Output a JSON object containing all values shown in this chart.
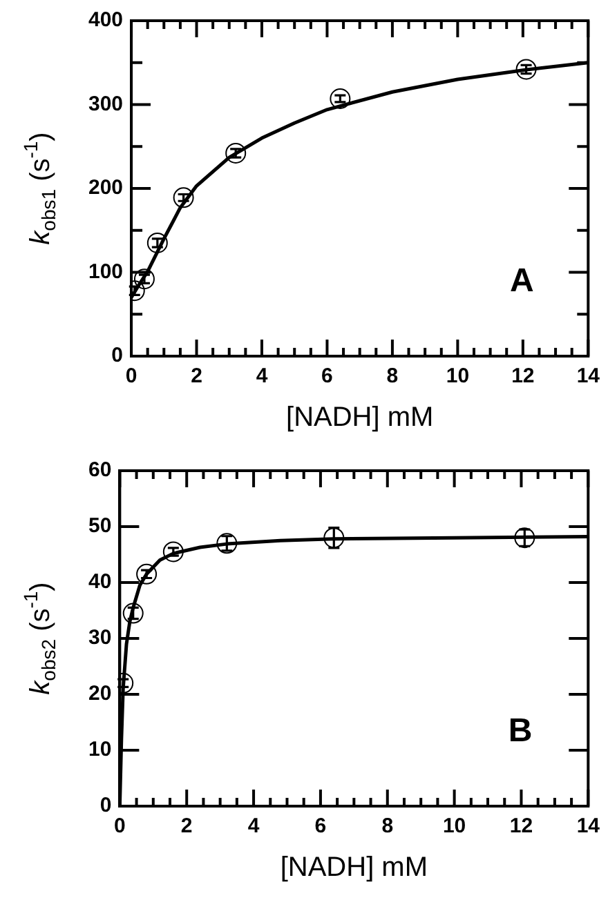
{
  "chart_data": [
    {
      "type": "scatter",
      "xlabel": "[NADH] mM",
      "ylabel": "k$_{obs1}$ (s$^{-1}$)",
      "annotations": [
        "A"
      ],
      "legend": false,
      "grid": false,
      "xlim": [
        0,
        14
      ],
      "ylim": [
        0,
        400
      ],
      "xticks": [
        0,
        {
          "value": 0.5,
          "label": null
        },
        {
          "value": 1,
          "label": null
        },
        {
          "value": 1.5,
          "label": null
        },
        2,
        {
          "value": 2.5,
          "label": null
        },
        {
          "value": 3,
          "label": null
        },
        {
          "value": 3.5,
          "label": null
        },
        4,
        {
          "value": 4.5,
          "label": null
        },
        {
          "value": 5,
          "label": null
        },
        {
          "value": 5.5,
          "label": null
        },
        6,
        {
          "value": 6.5,
          "label": null
        },
        {
          "value": 7,
          "label": null
        },
        {
          "value": 7.5,
          "label": null
        },
        8,
        {
          "value": 8.5,
          "label": null
        },
        {
          "value": 9,
          "label": null
        },
        {
          "value": 9.5,
          "label": null
        },
        10,
        {
          "value": 10.5,
          "label": null
        },
        {
          "value": 11,
          "label": null
        },
        {
          "value": 11.5,
          "label": null
        },
        12,
        {
          "value": 12.5,
          "label": null
        },
        {
          "value": 13,
          "label": null
        },
        {
          "value": 13.5,
          "label": null
        },
        14
      ],
      "yticks": [
        0,
        {
          "value": 50,
          "label": null
        },
        100,
        {
          "value": 150,
          "label": null
        },
        200,
        {
          "value": 250,
          "label": null
        },
        300,
        {
          "value": 350,
          "label": null
        },
        400
      ],
      "series": [
        {
          "type": "scatter",
          "marker": "circle",
          "color": "#000000",
          "x": [
            0.1,
            0.4,
            0.8,
            1.6,
            3.2,
            6.4,
            12.1
          ],
          "values": [
            78,
            92,
            135,
            189,
            242,
            307,
            342
          ],
          "errors": [
            5,
            5,
            5,
            4,
            5,
            4,
            5
          ]
        },
        {
          "type": "line",
          "marker": "none",
          "line_style": "solid",
          "color": "#000000",
          "x": [
            0,
            0.25,
            0.5,
            1,
            1.5,
            2,
            3,
            4,
            5,
            6,
            8,
            10,
            12,
            14
          ],
          "values": [
            70,
            86,
            101,
            140,
            177,
            203,
            237,
            260,
            278,
            294,
            315,
            330,
            341,
            350
          ]
        }
      ]
    },
    {
      "type": "scatter",
      "xlabel": "[NADH] mM",
      "ylabel": "k$_{obs2}$ (s$^{-1}$)",
      "annotations": [
        "B"
      ],
      "legend": false,
      "grid": false,
      "xlim": [
        0,
        14
      ],
      "ylim": [
        0,
        60
      ],
      "xticks": [
        0,
        {
          "value": 0.5,
          "label": null
        },
        {
          "value": 1,
          "label": null
        },
        {
          "value": 1.5,
          "label": null
        },
        2,
        {
          "value": 2.5,
          "label": null
        },
        {
          "value": 3,
          "label": null
        },
        {
          "value": 3.5,
          "label": null
        },
        4,
        {
          "value": 4.5,
          "label": null
        },
        {
          "value": 5,
          "label": null
        },
        {
          "value": 5.5,
          "label": null
        },
        6,
        {
          "value": 6.5,
          "label": null
        },
        {
          "value": 7,
          "label": null
        },
        {
          "value": 7.5,
          "label": null
        },
        8,
        {
          "value": 8.5,
          "label": null
        },
        {
          "value": 9,
          "label": null
        },
        {
          "value": 9.5,
          "label": null
        },
        10,
        {
          "value": 10.5,
          "label": null
        },
        {
          "value": 11,
          "label": null
        },
        {
          "value": 11.5,
          "label": null
        },
        12,
        {
          "value": 12.5,
          "label": null
        },
        {
          "value": 13,
          "label": null
        },
        {
          "value": 13.5,
          "label": null
        },
        14
      ],
      "yticks": [
        0,
        10,
        20,
        30,
        40,
        50,
        60
      ],
      "series": [
        {
          "type": "scatter",
          "marker": "circle",
          "color": "#000000",
          "x": [
            0.1,
            0.4,
            0.8,
            1.6,
            3.2,
            6.4,
            12.1
          ],
          "values": [
            22,
            34.5,
            41.5,
            45.5,
            47,
            48,
            48
          ],
          "errors": [
            0.7,
            1,
            0.7,
            0.7,
            1.3,
            1.8,
            1.5
          ]
        },
        {
          "type": "line",
          "marker": "none",
          "line_style": "solid",
          "color": "#000000",
          "x": [
            0,
            0.05,
            0.1,
            0.2,
            0.3,
            0.4,
            0.6,
            0.8,
            1.2,
            1.6,
            2.4,
            3.2,
            4.8,
            6.4,
            10,
            14
          ],
          "values": [
            0,
            12,
            21,
            29,
            33,
            35.5,
            39.5,
            41.5,
            44,
            45.2,
            46.3,
            46.9,
            47.5,
            47.8,
            48,
            48.2
          ]
        }
      ]
    }
  ]
}
